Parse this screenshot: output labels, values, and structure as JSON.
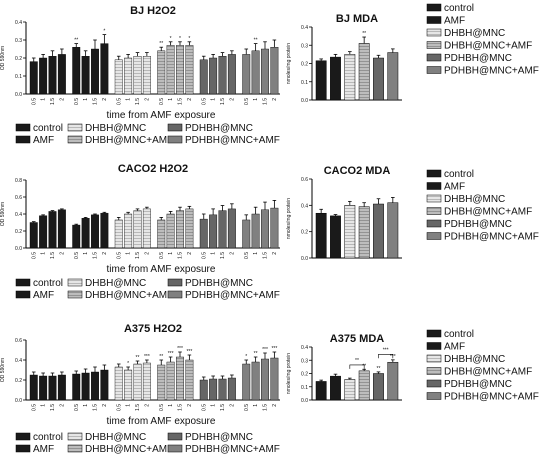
{
  "figure": {
    "legend_labels": [
      "control",
      "AMF",
      "DHBH@MNC",
      "DHBH@MNC+AMF",
      "PDHBH@MNC",
      "PDHBH@MNC+AMF"
    ],
    "legend_colors": [
      "#1a1a1a",
      "#1a1a1a",
      "#d9d9d9",
      "#c8c8c8",
      "#666666",
      "#808080"
    ]
  },
  "chart_data": [
    {
      "type": "bar",
      "title": "BJ H2O2",
      "ylabel": "OD 590nm",
      "xlabel": "time from AMF exposure",
      "ylim": [
        0,
        0.4
      ],
      "ticks": [
        0.0,
        0.1,
        0.2,
        0.3,
        0.4
      ],
      "x_ticks": [
        "0.5",
        "1",
        "1.5",
        "2"
      ],
      "series": [
        {
          "name": "control",
          "values": [
            0.18,
            0.2,
            0.21,
            0.22
          ],
          "errors": [
            0.02,
            0.02,
            0.03,
            0.03
          ],
          "sig": [
            "",
            "",
            "",
            ""
          ]
        },
        {
          "name": "AMF",
          "values": [
            0.26,
            0.21,
            0.25,
            0.28
          ],
          "errors": [
            0.02,
            0.03,
            0.05,
            0.05
          ],
          "sig": [
            "**",
            "",
            "",
            "*"
          ]
        },
        {
          "name": "DHBH@MNC",
          "values": [
            0.19,
            0.2,
            0.21,
            0.21
          ],
          "errors": [
            0.02,
            0.02,
            0.02,
            0.02
          ],
          "sig": [
            "",
            "",
            "",
            ""
          ]
        },
        {
          "name": "DHBH@MNC+AMF",
          "values": [
            0.24,
            0.27,
            0.27,
            0.27
          ],
          "errors": [
            0.02,
            0.02,
            0.02,
            0.02
          ],
          "sig": [
            "**",
            "*",
            "*",
            "*"
          ]
        },
        {
          "name": "PDHBH@MNC",
          "values": [
            0.19,
            0.2,
            0.21,
            0.22
          ],
          "errors": [
            0.02,
            0.02,
            0.02,
            0.02
          ],
          "sig": [
            "",
            "",
            "",
            ""
          ]
        },
        {
          "name": "PDHBH@MNC+AMF",
          "values": [
            0.22,
            0.24,
            0.25,
            0.26
          ],
          "errors": [
            0.03,
            0.04,
            0.04,
            0.04
          ],
          "sig": [
            "",
            "**",
            "",
            ""
          ]
        }
      ]
    },
    {
      "type": "bar",
      "title": "CACO2 H2O2",
      "ylabel": "OD 590nm",
      "xlabel": "time from AMF exposure",
      "ylim": [
        0,
        0.8
      ],
      "ticks": [
        0.0,
        0.2,
        0.4,
        0.6,
        0.8
      ],
      "x_ticks": [
        "0.5",
        "1",
        "1.5",
        "2"
      ],
      "series": [
        {
          "name": "control",
          "values": [
            0.3,
            0.38,
            0.43,
            0.45
          ],
          "errors": [
            0.01,
            0.01,
            0.01,
            0.01
          ],
          "sig": [
            "",
            "",
            "",
            ""
          ]
        },
        {
          "name": "AMF",
          "values": [
            0.27,
            0.35,
            0.39,
            0.41
          ],
          "errors": [
            0.01,
            0.01,
            0.01,
            0.01
          ],
          "sig": [
            "",
            "",
            "",
            ""
          ]
        },
        {
          "name": "DHBH@MNC",
          "values": [
            0.33,
            0.4,
            0.44,
            0.46
          ],
          "errors": [
            0.03,
            0.02,
            0.02,
            0.02
          ],
          "sig": [
            "",
            "",
            "",
            ""
          ]
        },
        {
          "name": "DHBH@MNC+AMF",
          "values": [
            0.33,
            0.4,
            0.44,
            0.46
          ],
          "errors": [
            0.03,
            0.03,
            0.04,
            0.03
          ],
          "sig": [
            "",
            "",
            "",
            ""
          ]
        },
        {
          "name": "PDHBH@MNC",
          "values": [
            0.34,
            0.39,
            0.44,
            0.46
          ],
          "errors": [
            0.06,
            0.07,
            0.06,
            0.06
          ],
          "sig": [
            "",
            "",
            "",
            ""
          ]
        },
        {
          "name": "PDHBH@MNC+AMF",
          "values": [
            0.33,
            0.4,
            0.45,
            0.47
          ],
          "errors": [
            0.06,
            0.08,
            0.09,
            0.09
          ],
          "sig": [
            "",
            "",
            "",
            ""
          ]
        }
      ]
    },
    {
      "type": "bar",
      "title": "A375 H2O2",
      "ylabel": "OD 590nm",
      "xlabel": "time from AMF exposure",
      "ylim": [
        0,
        0.6
      ],
      "ticks": [
        0.0,
        0.2,
        0.4,
        0.6
      ],
      "x_ticks": [
        "0.5",
        "1",
        "1.5",
        "2"
      ],
      "series": [
        {
          "name": "control",
          "values": [
            0.25,
            0.24,
            0.24,
            0.25
          ],
          "errors": [
            0.03,
            0.03,
            0.03,
            0.03
          ],
          "sig": [
            "",
            "",
            "",
            ""
          ]
        },
        {
          "name": "AMF",
          "values": [
            0.26,
            0.27,
            0.28,
            0.3
          ],
          "errors": [
            0.03,
            0.04,
            0.05,
            0.05
          ],
          "sig": [
            "",
            "",
            "",
            ""
          ]
        },
        {
          "name": "DHBH@MNC",
          "values": [
            0.33,
            0.3,
            0.36,
            0.37
          ],
          "errors": [
            0.03,
            0.03,
            0.03,
            0.03
          ],
          "sig": [
            "",
            "*",
            "**",
            "***"
          ]
        },
        {
          "name": "DHBH@MNC+AMF",
          "values": [
            0.35,
            0.38,
            0.43,
            0.4
          ],
          "errors": [
            0.05,
            0.05,
            0.05,
            0.05
          ],
          "sig": [
            "**",
            "***",
            "***",
            "***"
          ]
        },
        {
          "name": "PDHBH@MNC",
          "values": [
            0.2,
            0.21,
            0.21,
            0.22
          ],
          "errors": [
            0.03,
            0.03,
            0.03,
            0.03
          ],
          "sig": [
            "",
            "",
            "",
            ""
          ]
        },
        {
          "name": "PDHBH@MNC+AMF",
          "values": [
            0.36,
            0.38,
            0.41,
            0.42
          ],
          "errors": [
            0.04,
            0.05,
            0.06,
            0.06
          ],
          "sig": [
            "*",
            "**",
            "***",
            "***"
          ]
        }
      ]
    },
    {
      "type": "bar",
      "title": "BJ MDA",
      "ylabel": "nmoles/mg protein",
      "ylim": [
        0,
        0.4
      ],
      "ticks": [
        0.0,
        0.1,
        0.2,
        0.3,
        0.4
      ],
      "categories": [
        "control",
        "AMF",
        "DHBH@MNC",
        "DHBH@MNC+AMF",
        "PDHBH@MNC",
        "PDHBH@MNC+AMF"
      ],
      "values": [
        0.215,
        0.235,
        0.25,
        0.31,
        0.23,
        0.26
      ],
      "errors": [
        0.01,
        0.015,
        0.015,
        0.035,
        0.015,
        0.02
      ],
      "sig": [
        "",
        "",
        "",
        "**",
        "",
        ""
      ]
    },
    {
      "type": "bar",
      "title": "CACO2 MDA",
      "ylabel": "nmoles/mg protein",
      "ylim": [
        0,
        0.6
      ],
      "ticks": [
        0.0,
        0.2,
        0.4,
        0.6
      ],
      "categories": [
        "control",
        "AMF",
        "DHBH@MNC",
        "DHBH@MNC+AMF",
        "PDHBH@MNC",
        "PDHBH@MNC+AMF"
      ],
      "values": [
        0.34,
        0.32,
        0.4,
        0.39,
        0.41,
        0.42
      ],
      "errors": [
        0.03,
        0.01,
        0.03,
        0.03,
        0.04,
        0.04
      ],
      "sig": [
        "",
        "",
        "",
        "",
        "",
        ""
      ]
    },
    {
      "type": "bar",
      "title": "A375 MDA",
      "ylabel": "nmoles/mg protein",
      "ylim": [
        0,
        0.4
      ],
      "ticks": [
        0.0,
        0.1,
        0.2,
        0.3,
        0.4
      ],
      "categories": [
        "control",
        "AMF",
        "DHBH@MNC",
        "DHBH@MNC+AMF",
        "PDHBH@MNC",
        "PDHBH@MNC+AMF"
      ],
      "values": [
        0.14,
        0.18,
        0.155,
        0.22,
        0.2,
        0.285
      ],
      "errors": [
        0.01,
        0.015,
        0.01,
        0.012,
        0.012,
        0.018
      ],
      "sig": [
        "",
        "",
        "",
        "**",
        "**",
        "***"
      ],
      "brackets": [
        {
          "from": 2,
          "to": 3,
          "value": 0.265,
          "label": "**"
        },
        {
          "from": 4,
          "to": 5,
          "value": 0.345,
          "label": "***"
        }
      ]
    }
  ]
}
